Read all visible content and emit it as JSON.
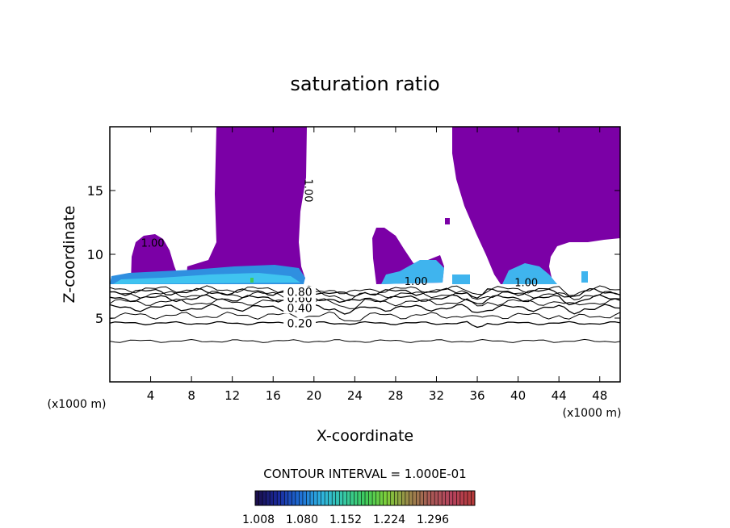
{
  "chart_data": {
    "type": "contour",
    "title": "saturation ratio",
    "xlabel": "X-coordinate",
    "ylabel": "Z-coordinate",
    "x_unit_label": "(x1000 m)",
    "x_unit_label_right": "(x1000 m)",
    "xlim": [
      0,
      50
    ],
    "ylim": [
      0,
      20
    ],
    "x_ticks": [
      4,
      8,
      12,
      16,
      20,
      24,
      28,
      32,
      36,
      40,
      44,
      48
    ],
    "y_ticks": [
      5,
      10,
      15
    ],
    "contour_note": "CONTOUR INTERVAL = 1.000E-01",
    "contour_lines": [
      {
        "level": "0.20",
        "z": 4.6
      },
      {
        "level": "0.40",
        "z": 5.8
      },
      {
        "level": "0.60",
        "z": 6.55
      },
      {
        "level": "0.80",
        "z": 7.05
      },
      {
        "level": "",
        "z": 3.2
      },
      {
        "level": "",
        "z": 5.2
      },
      {
        "level": "",
        "z": 6.25
      },
      {
        "level": "",
        "z": 6.85
      },
      {
        "level": "",
        "z": 7.25
      }
    ],
    "contour_labels": [
      {
        "text": "1.00",
        "x": 4.2,
        "z": 10.6
      },
      {
        "text": "1.00",
        "x": 30.0,
        "z": 7.6
      },
      {
        "text": "1.00",
        "x": 40.8,
        "z": 7.5
      },
      {
        "text": "1.00",
        "x": 19.1,
        "z": 15.0,
        "rotate": 90
      }
    ],
    "colorbar": {
      "colors": [
        "#1a0f4d",
        "#1a2a9e",
        "#1f6fd6",
        "#2fb4e0",
        "#36c9a7",
        "#3ecb5c",
        "#7fcf3a",
        "#9a8a4a",
        "#a85a55",
        "#b6445e",
        "#b33a3a"
      ],
      "tick_labels": [
        "1.008",
        "1.080",
        "1.152",
        "1.224",
        "1.296"
      ]
    },
    "fill_color_saturated": "#7b00a6",
    "fill_color_high": "#3fb4ee"
  }
}
